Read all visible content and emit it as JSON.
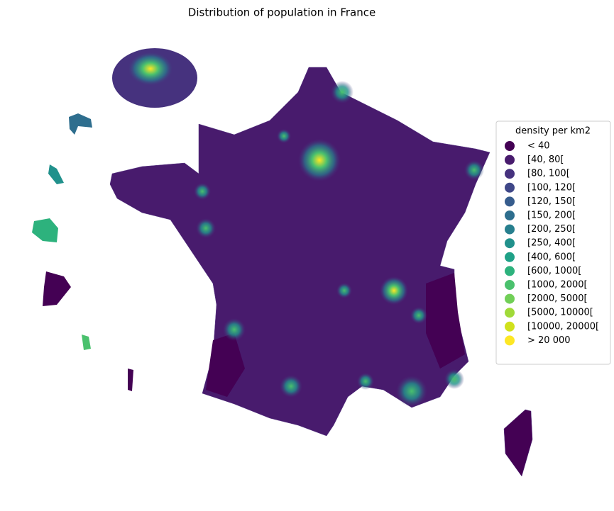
{
  "title": "Distribution of population in France",
  "legend": {
    "title": "density per km2",
    "items": [
      {
        "label": "< 40",
        "color": "#440154"
      },
      {
        "label": "[40, 80[",
        "color": "#481b6d"
      },
      {
        "label": "[80, 100[",
        "color": "#46327e"
      },
      {
        "label": "[100, 120[",
        "color": "#3f4788"
      },
      {
        "label": "[120, 150[",
        "color": "#365c8d"
      },
      {
        "label": "[150, 200[",
        "color": "#2e6e8e"
      },
      {
        "label": "[200, 250[",
        "color": "#277f8e"
      },
      {
        "label": "[250, 400[",
        "color": "#21918c"
      },
      {
        "label": "[400, 600[",
        "color": "#1fa187"
      },
      {
        "label": "[600, 1000[",
        "color": "#2db27d"
      },
      {
        "label": "[1000, 2000[",
        "color": "#4ac16d"
      },
      {
        "label": "[2000, 5000[",
        "color": "#71cf57"
      },
      {
        "label": "[5000, 10000[",
        "color": "#a0da39"
      },
      {
        "label": "[10000, 20000[",
        "color": "#d0e11c"
      },
      {
        "label": "> 20 000",
        "color": "#fde725"
      }
    ]
  }
}
